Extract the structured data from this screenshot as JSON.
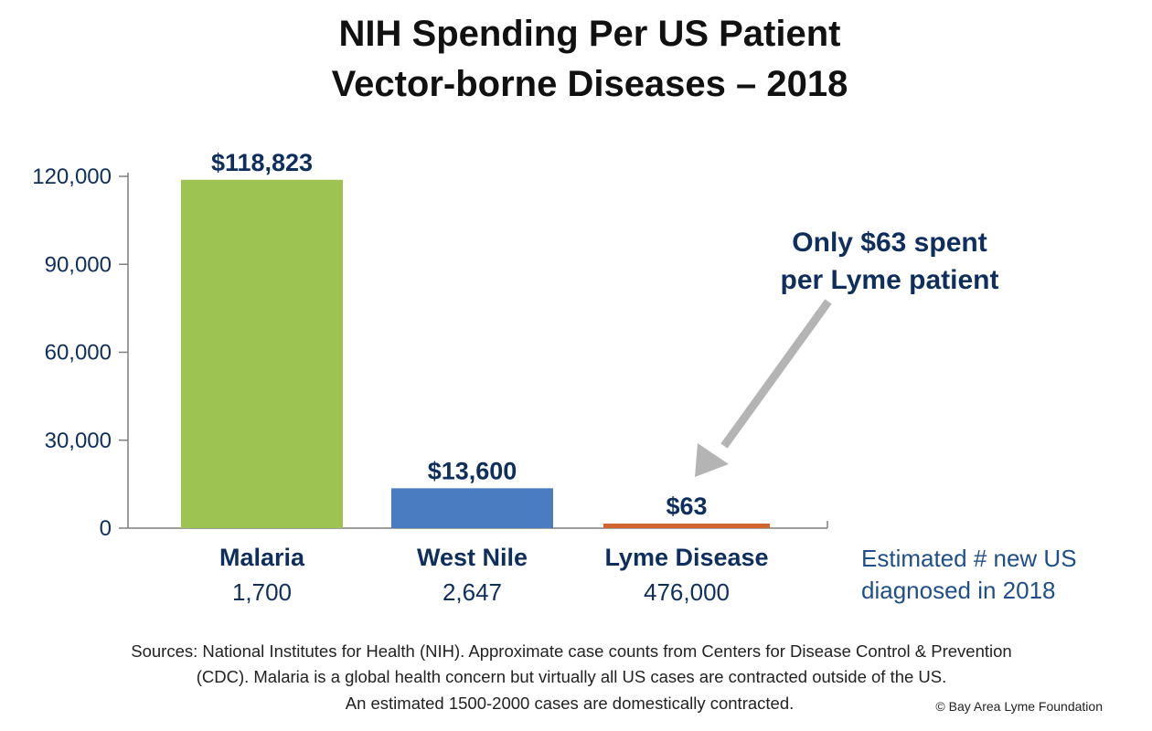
{
  "chart_data": {
    "type": "bar",
    "title_lines": [
      "NIH Spending Per US Patient",
      "Vector-borne Diseases – 2018"
    ],
    "categories": [
      "Malaria",
      "West Nile",
      "Lyme Disease"
    ],
    "values": [
      118823,
      13600,
      63
    ],
    "value_labels": [
      "$118,823",
      "$13,600",
      "$63"
    ],
    "case_counts": [
      "1,700",
      "2,647",
      "476,000"
    ],
    "case_count_label": "Estimated # new US diagnosed in 2018",
    "ylim": [
      0,
      120000
    ],
    "yticks": [
      0,
      30000,
      60000,
      90000,
      120000
    ],
    "ytick_labels": [
      "0",
      "30,000",
      "60,000",
      "90,000",
      "120,000"
    ],
    "grid": false,
    "colors": {
      "bars": [
        "#9dc453",
        "#4a7cc1",
        "#d2652d"
      ],
      "text_dark": "#0e2f5e",
      "axis": "#7f7f7f",
      "arrow": "#b4b4b4"
    },
    "annotation": {
      "text_lines": [
        "Only $63 spent",
        "per Lyme patient"
      ],
      "points_to": "Lyme Disease"
    }
  },
  "sources_lines": [
    "Sources: National Institutes for Health (NIH). Approximate case counts from Centers for Disease Control & Prevention",
    "(CDC). Malaria is a global health concern but virtually all US cases are contracted outside of the US.",
    "An estimated 1500-2000 cases are domestically contracted."
  ],
  "copyright": "© Bay Area Lyme Foundation"
}
